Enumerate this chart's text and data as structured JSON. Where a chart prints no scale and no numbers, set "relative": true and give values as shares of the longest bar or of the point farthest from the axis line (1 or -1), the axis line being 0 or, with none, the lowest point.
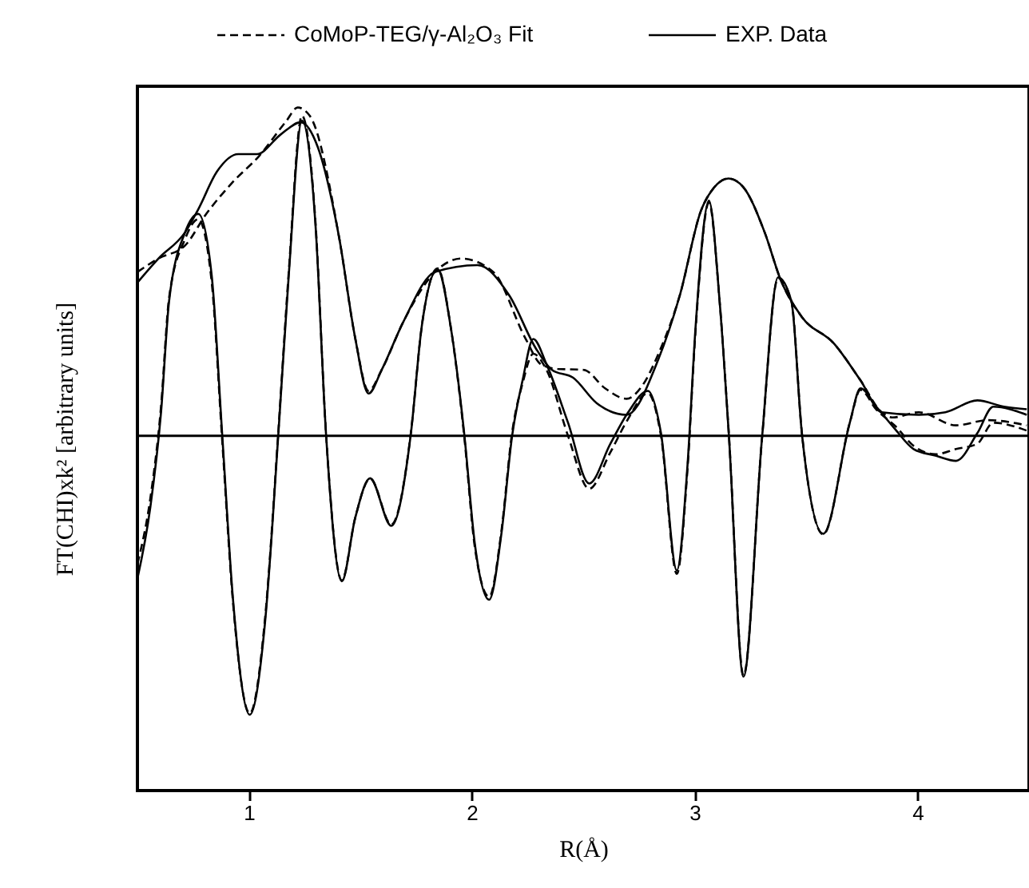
{
  "chart_data": {
    "type": "line",
    "relative": true,
    "xlabel": "R(Å)",
    "ylabel": "FT(CHI)xk² [arbitrary units]",
    "xlim": [
      0.5,
      4.5
    ],
    "xticks": [
      1,
      2,
      3,
      4
    ],
    "legend": "top",
    "grid": false,
    "tick_labels": "x",
    "series": [
      {
        "name": "CoMoP-TEG/γ-Al₂O₃ Fit",
        "color": "#000000",
        "line_style": "dashed",
        "x": [
          0.5,
          0.594,
          0.714,
          0.809,
          0.928,
          1.047,
          1.167,
          1.219,
          1.274,
          1.405,
          1.477,
          1.537,
          1.596,
          1.692,
          1.835,
          1.954,
          2.097,
          2.24,
          2.312,
          2.384,
          2.503,
          2.598,
          2.694,
          2.765,
          2.837,
          2.933,
          3.028,
          3.088,
          3.152,
          3.219,
          3.314,
          3.386,
          3.481,
          3.624,
          3.744,
          3.839,
          3.887,
          4.006,
          4.173,
          4.316,
          4.49
        ],
        "values": [
          0.499,
          0.54,
          0.58,
          0.676,
          0.773,
          0.853,
          0.958,
          1.0,
          0.974,
          0.604,
          0.298,
          0.137,
          0.201,
          0.346,
          0.499,
          0.54,
          0.499,
          0.298,
          0.217,
          0.204,
          0.201,
          0.145,
          0.113,
          0.153,
          0.249,
          0.427,
          0.685,
          0.757,
          0.784,
          0.757,
          0.62,
          0.475,
          0.362,
          0.282,
          0.169,
          0.072,
          0.056,
          0.072,
          0.032,
          0.048,
          0.032
        ]
      },
      {
        "name": "EXP. Data",
        "color": "#000000",
        "line_style": "solid",
        "x": [
          0.5,
          0.594,
          0.714,
          0.773,
          0.857,
          0.952,
          1.036,
          1.143,
          1.233,
          1.31,
          1.405,
          1.477,
          1.537,
          1.596,
          1.692,
          1.835,
          2.026,
          2.169,
          2.288,
          2.36,
          2.455,
          2.56,
          2.694,
          2.837,
          2.933,
          3.028,
          3.088,
          3.152,
          3.219,
          3.314,
          3.386,
          3.481,
          3.624,
          3.744,
          3.839,
          4.006,
          4.125,
          4.268,
          4.388,
          4.49
        ],
        "values": [
          0.467,
          0.54,
          0.62,
          0.69,
          0.805,
          0.858,
          0.858,
          0.918,
          0.955,
          0.878,
          0.604,
          0.298,
          0.129,
          0.201,
          0.346,
          0.499,
          0.52,
          0.427,
          0.266,
          0.201,
          0.177,
          0.1,
          0.064,
          0.233,
          0.427,
          0.685,
          0.757,
          0.784,
          0.757,
          0.62,
          0.475,
          0.362,
          0.282,
          0.169,
          0.072,
          0.064,
          0.072,
          0.108,
          0.089,
          0.081
        ]
      },
      {
        "color": "#000000",
        "line_style": "dashed",
        "x": [
          0.5,
          0.558,
          0.606,
          0.642,
          0.714,
          0.773,
          0.833,
          0.88,
          0.928,
          1.004,
          1.072,
          1.131,
          1.179,
          1.238,
          1.298,
          1.346,
          1.417,
          1.477,
          1.544,
          1.639,
          1.727,
          1.775,
          1.847,
          1.906,
          1.966,
          2.014,
          2.078,
          2.133,
          2.181,
          2.228,
          2.276,
          2.336,
          2.432,
          2.527,
          2.622,
          2.7,
          2.79,
          2.849,
          2.92,
          2.968,
          3.004,
          3.064,
          3.112,
          3.153,
          3.219,
          3.302,
          3.374,
          3.434,
          3.481,
          3.577,
          3.696,
          3.744,
          3.815,
          3.9,
          3.982,
          4.08,
          4.173,
          4.268,
          4.34,
          4.49
        ],
        "values": [
          -0.39,
          -0.19,
          0.09,
          0.42,
          0.6,
          0.66,
          0.47,
          -0.01,
          -0.5,
          -0.845,
          -0.56,
          0.0,
          0.5,
          0.975,
          0.66,
          0.01,
          -0.44,
          -0.25,
          -0.13,
          -0.27,
          0.01,
          0.33,
          0.51,
          0.33,
          0.0,
          -0.34,
          -0.49,
          -0.29,
          0.01,
          0.16,
          0.25,
          0.2,
          0.0,
          -0.161,
          -0.05,
          0.05,
          0.13,
          0.0,
          -0.42,
          -0.1,
          0.32,
          0.71,
          0.41,
          0.01,
          -0.73,
          -0.01,
          0.48,
          0.41,
          0.01,
          -0.3,
          0.04,
          0.14,
          0.08,
          0.03,
          -0.03,
          -0.056,
          -0.04,
          -0.024,
          0.04,
          0.016
        ]
      },
      {
        "color": "#000000",
        "line_style": "solid",
        "x": [
          0.5,
          0.558,
          0.606,
          0.642,
          0.714,
          0.773,
          0.833,
          0.88,
          0.928,
          1.004,
          1.072,
          1.131,
          1.179,
          1.238,
          1.298,
          1.346,
          1.417,
          1.477,
          1.544,
          1.639,
          1.727,
          1.775,
          1.847,
          1.906,
          1.966,
          2.014,
          2.078,
          2.133,
          2.181,
          2.228,
          2.276,
          2.336,
          2.432,
          2.527,
          2.622,
          2.7,
          2.79,
          2.849,
          2.92,
          2.968,
          3.004,
          3.064,
          3.112,
          3.153,
          3.219,
          3.302,
          3.374,
          3.434,
          3.481,
          3.577,
          3.696,
          3.744,
          3.815,
          3.9,
          3.982,
          4.08,
          4.173,
          4.268,
          4.34,
          4.49
        ],
        "values": [
          -0.435,
          -0.217,
          0.072,
          0.41,
          0.62,
          0.676,
          0.49,
          0.008,
          -0.491,
          -0.849,
          -0.572,
          -0.008,
          0.49,
          0.96,
          0.652,
          0.008,
          -0.443,
          -0.25,
          -0.129,
          -0.274,
          0.008,
          0.33,
          0.507,
          0.33,
          0.008,
          -0.33,
          -0.499,
          -0.298,
          0,
          0.169,
          0.295,
          0.217,
          0.04,
          -0.145,
          -0.024,
          0.07,
          0.137,
          0.008,
          -0.41,
          -0.089,
          0.33,
          0.716,
          0.41,
          0.008,
          -0.733,
          -0.008,
          0.483,
          0.41,
          0.008,
          -0.298,
          0.04,
          0.145,
          0.089,
          0.02,
          -0.04,
          -0.06,
          -0.076,
          0.008,
          0.089,
          0.064
        ]
      }
    ]
  }
}
